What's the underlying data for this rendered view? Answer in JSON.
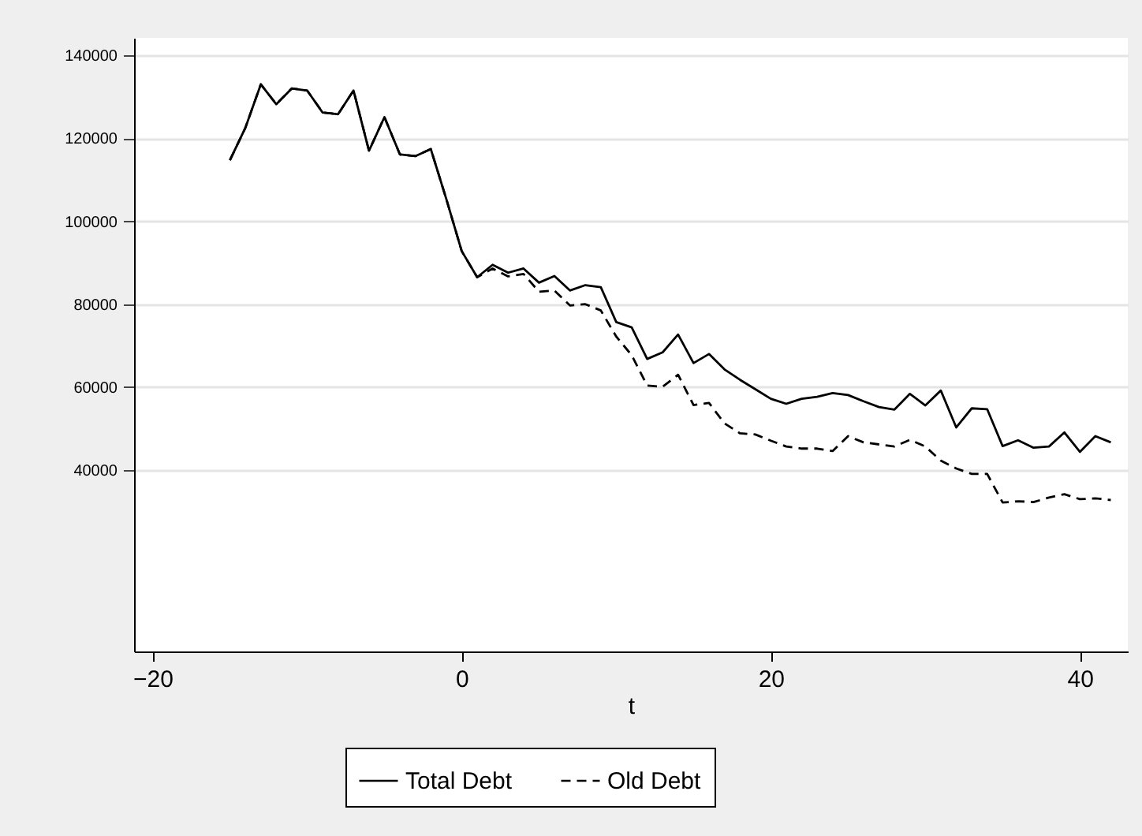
{
  "chart_data": {
    "type": "line",
    "xlabel": "t",
    "x": [
      -15,
      -14,
      -13,
      -12,
      -11,
      -10,
      -9,
      -8,
      -7,
      -6,
      -5,
      -4,
      -3,
      -2,
      -1,
      0,
      1,
      2,
      3,
      4,
      5,
      6,
      7,
      8,
      9,
      10,
      11,
      12,
      13,
      14,
      15,
      16,
      17,
      18,
      19,
      20,
      21,
      22,
      23,
      24,
      25,
      26,
      27,
      28,
      29,
      30,
      31,
      32,
      33,
      34,
      35,
      36,
      37,
      38,
      39,
      40,
      41,
      42
    ],
    "series": [
      {
        "name": "Total Debt",
        "color": "#000000",
        "line_style": "solid",
        "values": [
          114700,
          122500,
          133000,
          128200,
          132000,
          131500,
          126200,
          125800,
          131500,
          117000,
          125100,
          116100,
          115700,
          117400,
          105400,
          92800,
          86500,
          89500,
          87600,
          88600,
          85200,
          86800,
          83300,
          84600,
          84100,
          75700,
          74400,
          66800,
          68400,
          72700,
          65800,
          68000,
          64300,
          61800,
          59500,
          57200,
          56000,
          57200,
          57700,
          58600,
          58100,
          56600,
          55200,
          54600,
          58400,
          55600,
          59200,
          50300,
          54900,
          54700,
          45800,
          47200,
          45400,
          45700,
          49100,
          44400,
          48200,
          46700
        ]
      },
      {
        "name": "Old Debt",
        "color": "#000000",
        "line_style": "dashed",
        "values": [
          114700,
          122500,
          133000,
          128200,
          132000,
          131500,
          126200,
          125800,
          131500,
          117000,
          125100,
          116100,
          115700,
          117400,
          105400,
          92800,
          86500,
          88600,
          86700,
          87300,
          83000,
          83300,
          79700,
          80000,
          78500,
          72200,
          67700,
          60400,
          60100,
          63000,
          55700,
          56200,
          51300,
          48900,
          48600,
          47100,
          45700,
          45200,
          45200,
          44600,
          48200,
          46700,
          46200,
          45700,
          47300,
          45700,
          42300,
          40400,
          39100,
          39100,
          32200,
          32500,
          32300,
          33400,
          34200,
          33000,
          33200,
          32800
        ]
      }
    ],
    "xlim": [
      -21.2,
      43.1
    ],
    "xticks": [
      -20,
      0,
      20,
      40
    ],
    "ylim": [
      -3700,
      144200
    ],
    "yticks": [
      40000,
      60000,
      80000,
      100000,
      120000,
      140000
    ],
    "grid": "y",
    "legend": "bottom",
    "marker": "none"
  }
}
